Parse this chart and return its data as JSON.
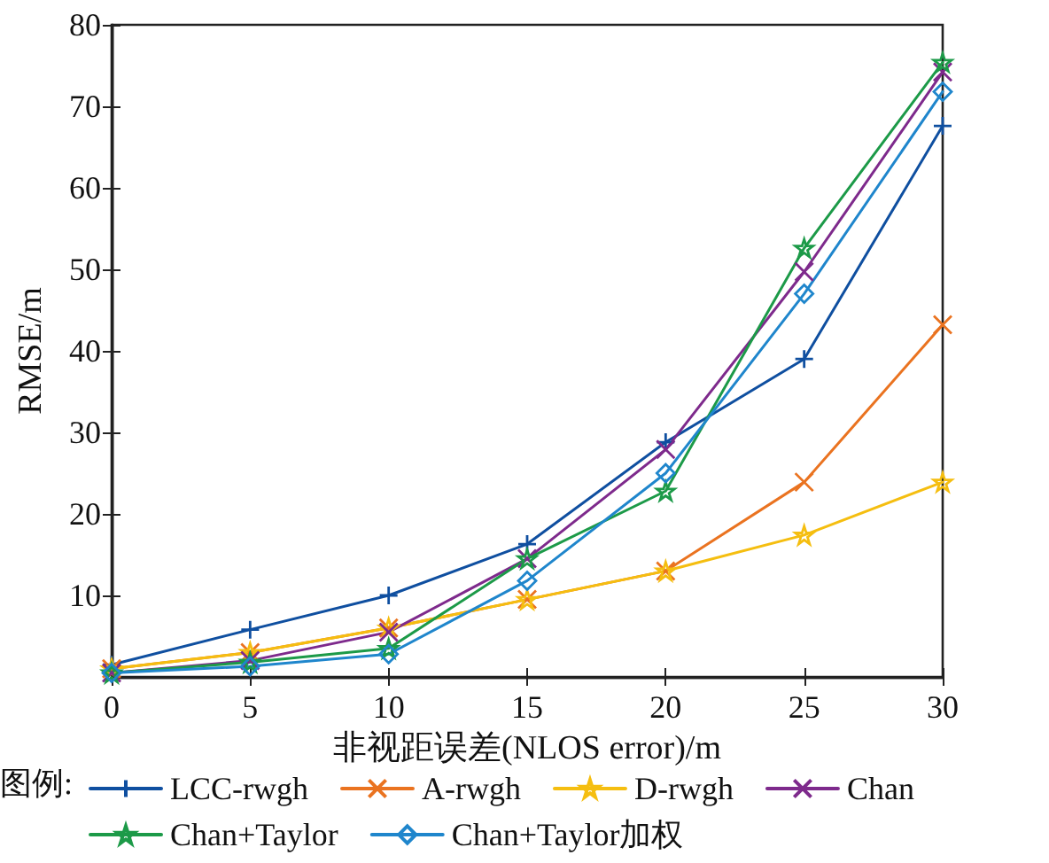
{
  "chart_data": {
    "type": "line",
    "xlabel": "非视距误差(NLOS error)/m",
    "ylabel": "RMSE/m",
    "legend_title": "图例:",
    "x": [
      0,
      5,
      10,
      15,
      20,
      25,
      30
    ],
    "xlim": [
      0,
      30
    ],
    "xticks": [
      0,
      5,
      10,
      15,
      20,
      25,
      30
    ],
    "ylim": [
      0,
      80
    ],
    "yticks": [
      10,
      20,
      30,
      40,
      50,
      60,
      70,
      80
    ],
    "grid": false,
    "legend": "bottom",
    "line_style": "solid",
    "series": [
      {
        "name": "LCC-rwgh",
        "color": "#0f4fa0",
        "marker": "plus",
        "values": [
          1.5,
          5.8,
          10,
          16.3,
          28.8,
          39,
          67.6
        ]
      },
      {
        "name": "A-rwgh",
        "color": "#ea7320",
        "marker": "cross",
        "values": [
          1,
          3,
          6,
          9.5,
          13,
          23.9,
          43.2
        ]
      },
      {
        "name": "D-rwgh",
        "color": "#f5be10",
        "marker": "star",
        "values": [
          1,
          3,
          6,
          9.5,
          13,
          17.4,
          23.9
        ]
      },
      {
        "name": "Chan",
        "color": "#7e2a8c",
        "marker": "cross",
        "values": [
          0.5,
          2,
          5.5,
          14.5,
          27.9,
          49.7,
          74.2
        ]
      },
      {
        "name": "Chan+Taylor",
        "color": "#1c9a48",
        "marker": "star",
        "values": [
          0.5,
          1.8,
          3.5,
          14.5,
          22.8,
          52.6,
          75.4
        ]
      },
      {
        "name": "Chan+Taylor加权",
        "color": "#1f86cc",
        "marker": "diamond",
        "values": [
          0.5,
          1.3,
          2.8,
          11.8,
          25,
          47,
          71.8
        ]
      }
    ]
  }
}
